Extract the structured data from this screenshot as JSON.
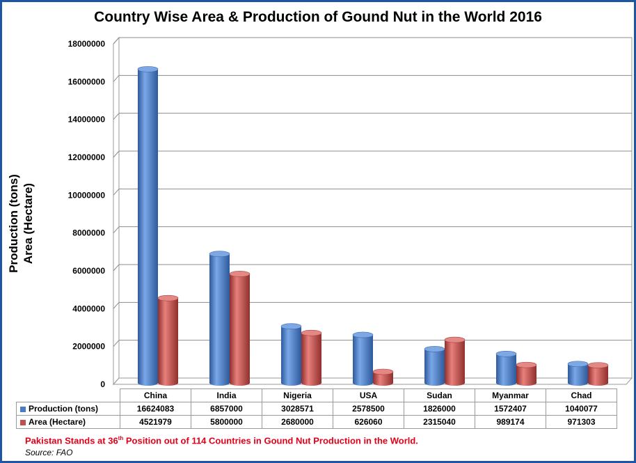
{
  "chart_data": {
    "type": "bar",
    "title": "Country Wise Area & Production of Gound Nut in the World 2016",
    "ylabel_lines": [
      "Production (tons)",
      "Area (Hectare)"
    ],
    "categories": [
      "China",
      "India",
      "Nigeria",
      "USA",
      "Sudan",
      "Myanmar",
      "Chad"
    ],
    "series": [
      {
        "name": "Production (tons)",
        "color": "#4a7bc4",
        "values": [
          16624083,
          6857000,
          3028571,
          2578500,
          1826000,
          1572407,
          1040077
        ]
      },
      {
        "name": "Area (Hectare)",
        "color": "#c0504d",
        "values": [
          4521979,
          5800000,
          2680000,
          626060,
          2315040,
          989174,
          971303
        ]
      }
    ],
    "table_values": [
      [
        "16624083",
        "6857000",
        "3028571",
        "2578500",
        "1826000",
        "1572407",
        "1040077"
      ],
      [
        "4521979",
        "5800000",
        "2680000",
        "626060",
        "2315040",
        "989174",
        "971303"
      ]
    ],
    "ylim": [
      0,
      18000000
    ],
    "yticks": [
      "0",
      "2000000",
      "4000000",
      "6000000",
      "8000000",
      "10000000",
      "12000000",
      "14000000",
      "16000000",
      "18000000"
    ],
    "grid": true,
    "legend": "data-table"
  },
  "note": {
    "before": "Pakistan Stands at 36",
    "sup": "th",
    "after": " Position out of 114 Countries in Gound Nut Production in the World."
  },
  "source": "Source: FAO",
  "colors": {
    "frame": "#1f56a3",
    "note": "#e0001a"
  }
}
